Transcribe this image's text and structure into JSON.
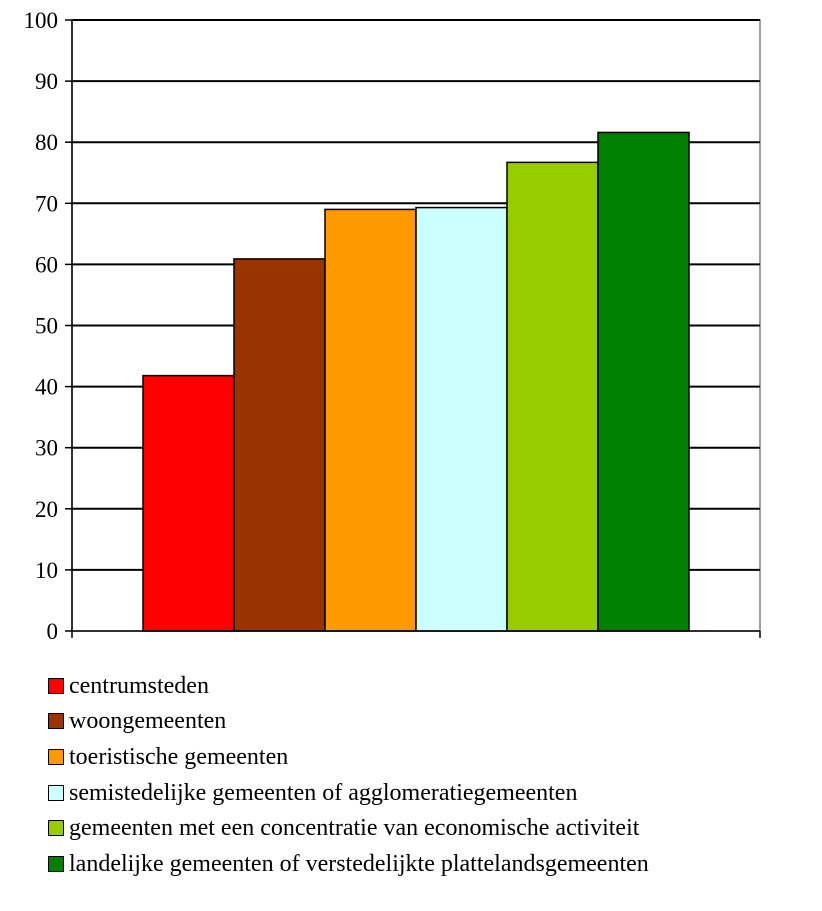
{
  "chart_data": {
    "type": "bar",
    "title": "",
    "xlabel": "",
    "ylabel": "",
    "ylim": [
      0,
      100
    ],
    "yticks": [
      0,
      10,
      20,
      30,
      40,
      50,
      60,
      70,
      80,
      90,
      100
    ],
    "grid": true,
    "legend_position": "bottom",
    "series": [
      {
        "name": "centrumsteden",
        "value": 41.8,
        "color": "#ff0000"
      },
      {
        "name": "woongemeenten",
        "value": 60.9,
        "color": "#993300"
      },
      {
        "name": "toeristische gemeenten",
        "value": 69.0,
        "color": "#ff9900"
      },
      {
        "name": "semistedelijke gemeenten of agglomeratiegemeenten",
        "value": 69.3,
        "color": "#ccffff"
      },
      {
        "name": "gemeenten met een concentratie van economische activiteit",
        "value": 76.7,
        "color": "#99cc00"
      },
      {
        "name": "landelijke gemeenten of verstedelijkte plattelandsgemeenten",
        "value": 81.6,
        "color": "#008000"
      }
    ]
  }
}
